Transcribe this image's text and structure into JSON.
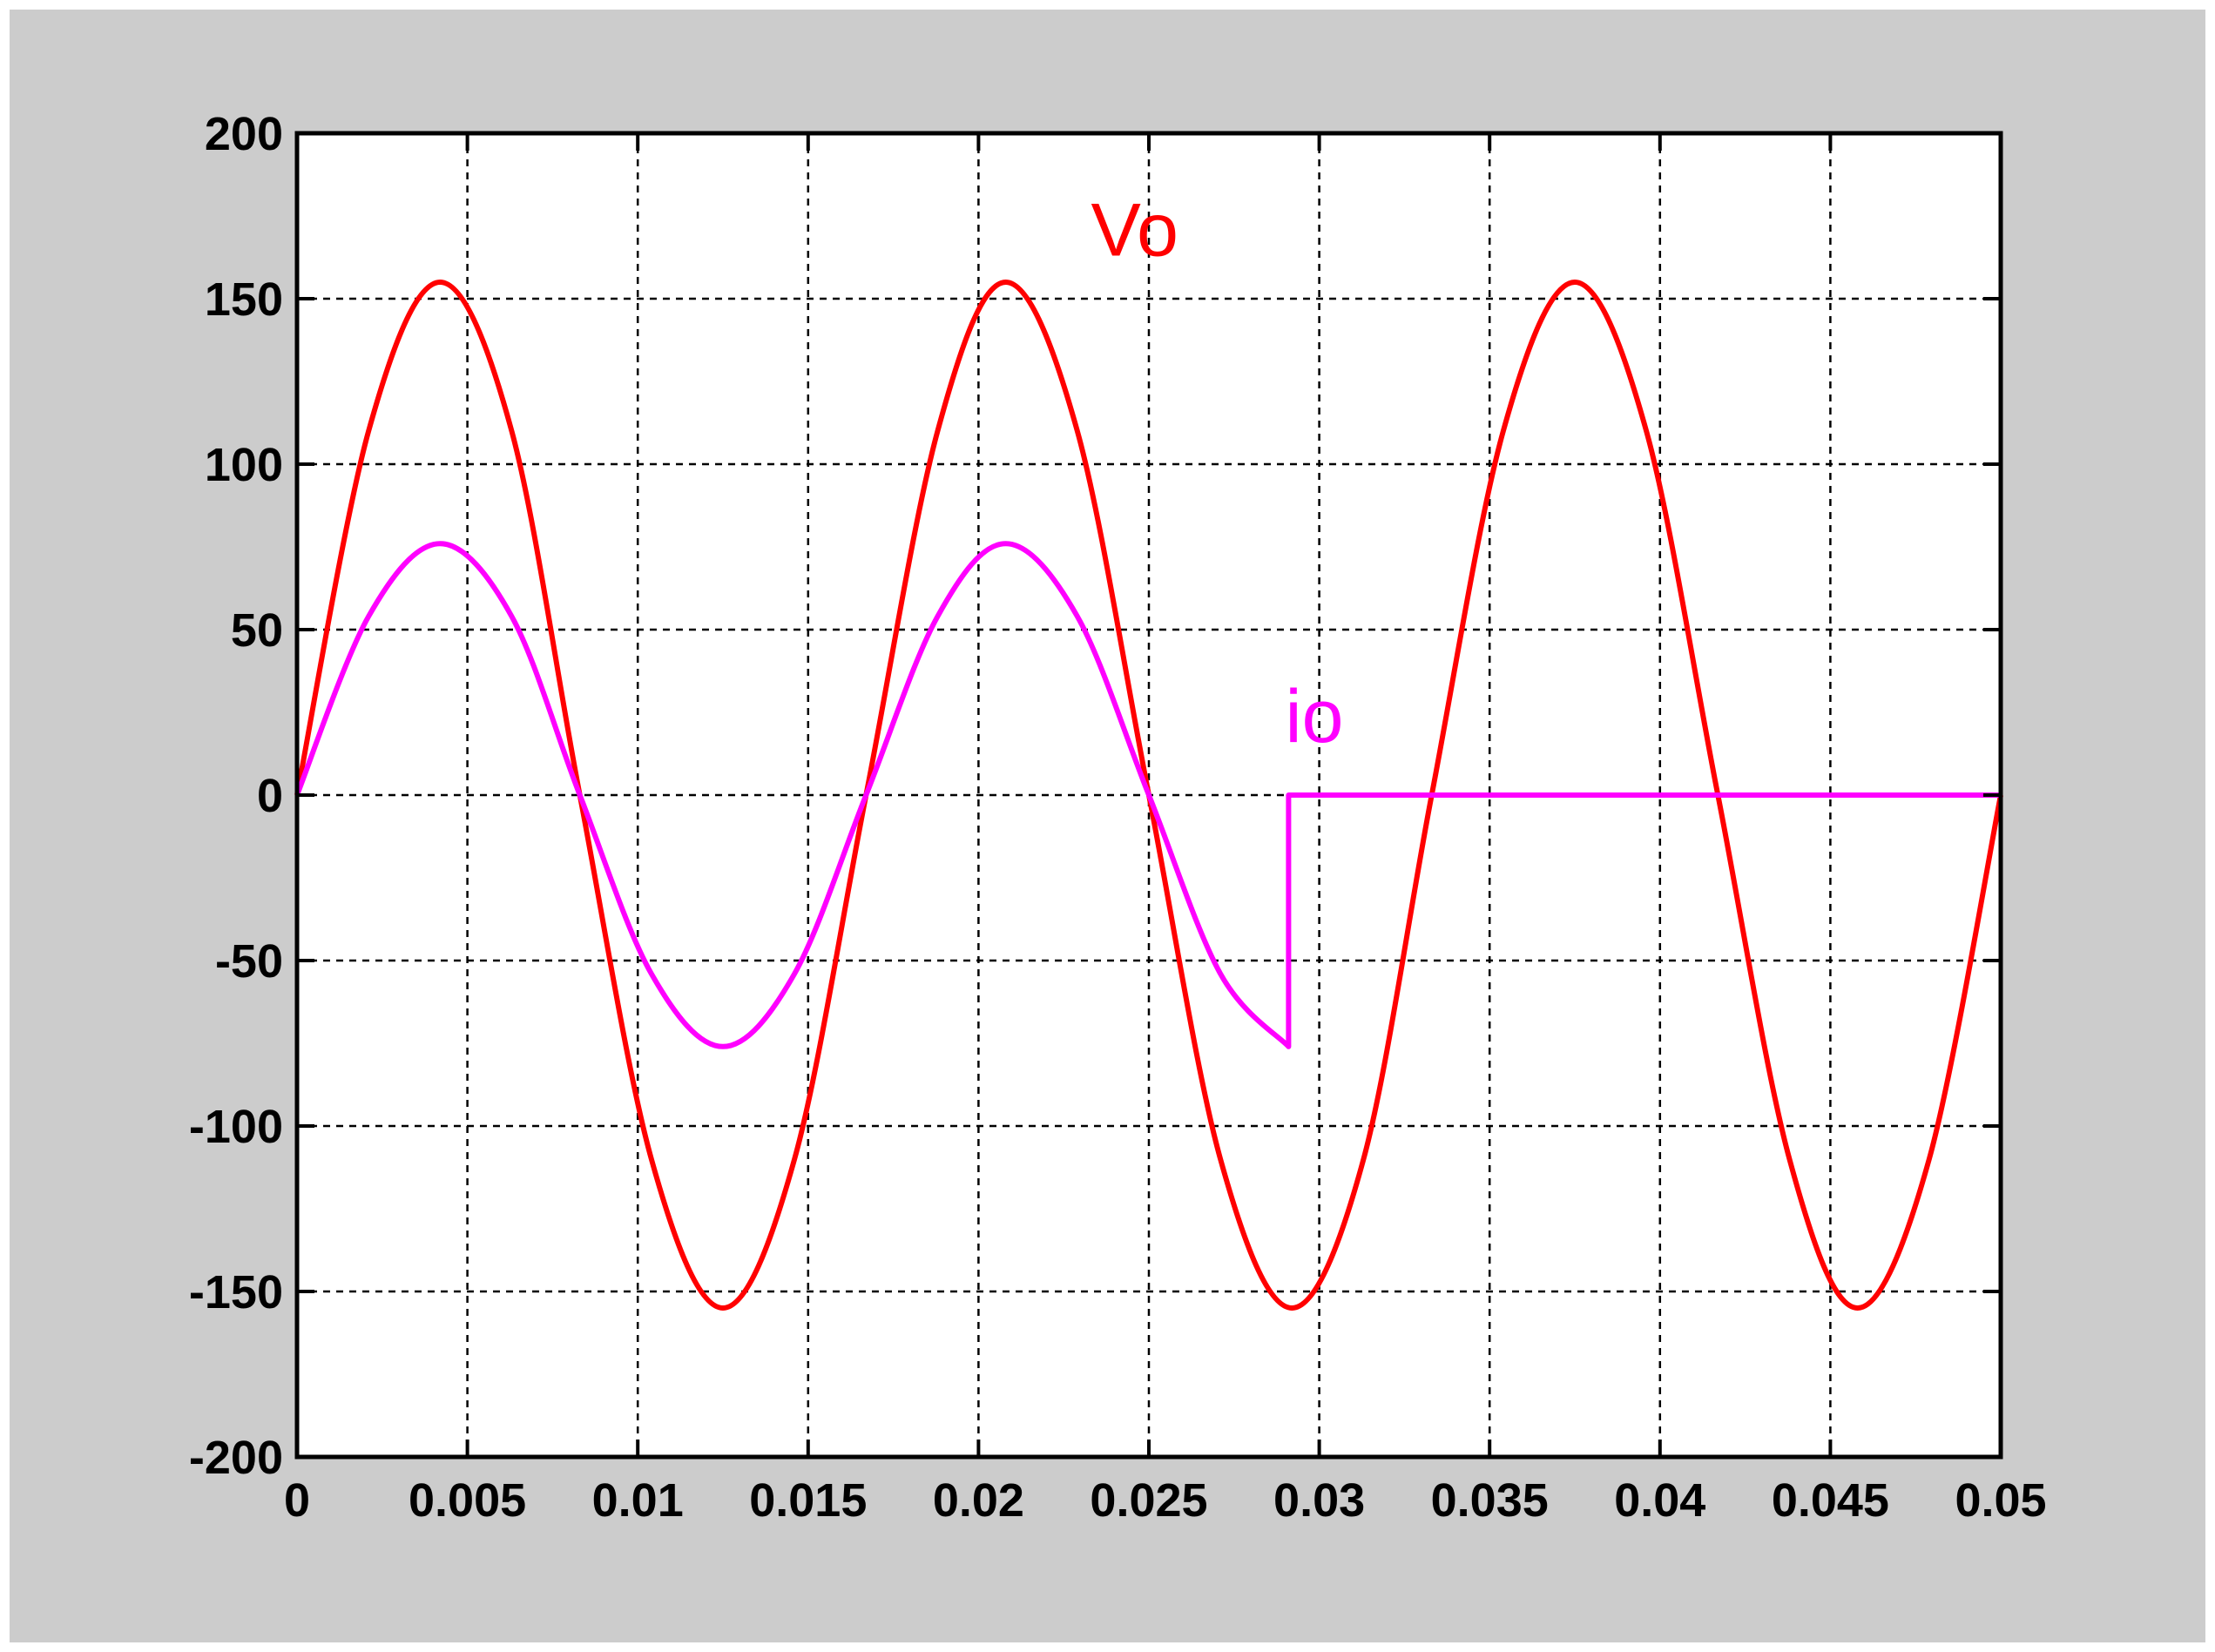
{
  "chart_data": {
    "type": "line",
    "title": "",
    "xlabel": "",
    "ylabel": "",
    "xlim": [
      0,
      0.05
    ],
    "ylim": [
      -200,
      200
    ],
    "x_ticks": [
      0,
      0.005,
      0.01,
      0.015,
      0.02,
      0.025,
      0.03,
      0.035,
      0.04,
      0.045,
      0.05
    ],
    "x_tick_labels": [
      "0",
      "0.005",
      "0.01",
      "0.015",
      "0.02",
      "0.025",
      "0.03",
      "0.035",
      "0.04",
      "0.045",
      "0.05"
    ],
    "y_ticks": [
      200,
      150,
      100,
      50,
      0,
      -50,
      -100,
      -150,
      -200
    ],
    "y_tick_labels": [
      "200",
      "150",
      "100",
      "50",
      "0",
      "-50",
      "-100",
      "-150",
      "-200"
    ],
    "grid": true,
    "grid_style": "dashed",
    "background_color": "#cccccc",
    "plot_area_color": "#ffffff",
    "series": [
      {
        "name": "Vo",
        "color": "#ff0000",
        "x": [
          0,
          0.0021,
          0.0042,
          0.0063,
          0.0083,
          0.0104,
          0.0125,
          0.0146,
          0.0167,
          0.0188,
          0.0208,
          0.0229,
          0.025,
          0.0271,
          0.0292,
          0.0313,
          0.0333,
          0.0354,
          0.0375,
          0.0396,
          0.0417,
          0.0438,
          0.0458,
          0.0479,
          0.05
        ],
        "y": [
          0,
          110,
          155,
          110,
          0,
          -110,
          -155,
          -110,
          0,
          110,
          155,
          110,
          0,
          -110,
          -155,
          -110,
          0,
          110,
          155,
          110,
          0,
          -110,
          -155,
          -110,
          0
        ]
      },
      {
        "name": "io",
        "color": "#ff00ff",
        "x": [
          0,
          0.0021,
          0.0042,
          0.0063,
          0.0083,
          0.0104,
          0.0125,
          0.0146,
          0.0167,
          0.0188,
          0.0208,
          0.0229,
          0.025,
          0.0271,
          0.0291,
          0.0291,
          0.05
        ],
        "y": [
          0,
          54,
          76,
          54,
          0,
          -54,
          -76,
          -54,
          0,
          54,
          76,
          54,
          0,
          -54,
          -76,
          0,
          0
        ]
      }
    ],
    "annotations": [
      {
        "text": "Vo",
        "x": 0.0233,
        "y": 163,
        "color": "#ff0000"
      },
      {
        "text": "io",
        "x": 0.029,
        "y": 16,
        "color": "#ff00ff"
      }
    ]
  }
}
